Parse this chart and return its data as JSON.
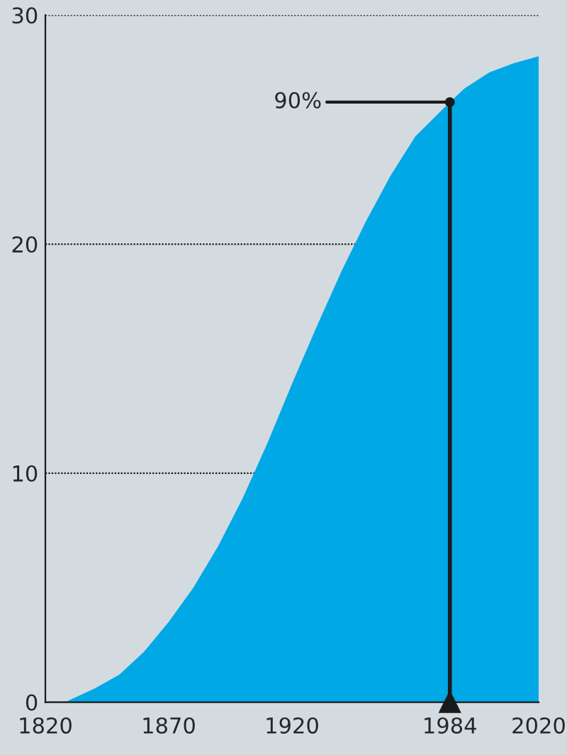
{
  "chart_data": {
    "type": "area",
    "x": [
      1828,
      1840,
      1850,
      1860,
      1870,
      1880,
      1890,
      1900,
      1910,
      1920,
      1930,
      1940,
      1950,
      1960,
      1970,
      1984,
      1990,
      2000,
      2010,
      2020
    ],
    "series": [
      {
        "color": "#00a8e6",
        "values": [
          0,
          0.6,
          1.2,
          2.2,
          3.5,
          5.0,
          6.8,
          8.9,
          11.3,
          13.9,
          16.4,
          18.8,
          21.0,
          23.0,
          24.7,
          26.2,
          26.8,
          27.5,
          27.9,
          28.2
        ]
      }
    ],
    "xlim": [
      1820,
      2020
    ],
    "ylim": [
      0,
      30
    ],
    "xticks": [
      1820,
      1870,
      1920,
      1984,
      2020
    ],
    "yticks": [
      0,
      10,
      20,
      30
    ],
    "grid": "y",
    "ref_lines": [
      {
        "axis": "x",
        "value": 1984,
        "color": "#1a1a1a"
      }
    ],
    "annotations": [
      {
        "text": "90%",
        "x": 1984,
        "y": 26.2
      }
    ]
  }
}
